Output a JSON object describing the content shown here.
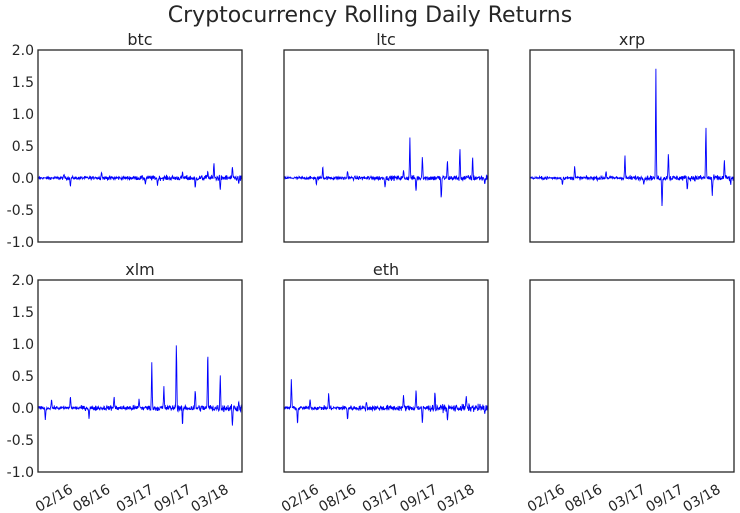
{
  "figure": {
    "title": "Cryptocurrency Rolling Daily Returns"
  },
  "chart_data": {
    "type": "line",
    "title": "Cryptocurrency Rolling Daily Returns",
    "ylim": [
      -1.0,
      2.0
    ],
    "yticks": [
      "2.0",
      "1.5",
      "1.0",
      "0.5",
      "0.0",
      "-0.5",
      "-1.0"
    ],
    "xticks": [
      "02/16",
      "08/16",
      "03/17",
      "09/17",
      "03/18"
    ],
    "grid": false,
    "line_color": "#0000ff",
    "panels": [
      {
        "name": "btc",
        "approx_band": [
          -0.12,
          0.12
        ],
        "series": [
          {
            "x": "2015-09",
            "y": 0.0
          },
          {
            "x": "2015-12",
            "y": 0.06
          },
          {
            "x": "2016-01",
            "y": -0.15
          },
          {
            "x": "2016-05",
            "y": 0.02
          },
          {
            "x": "2016-06",
            "y": 0.1
          },
          {
            "x": "2016-09",
            "y": 0.0
          },
          {
            "x": "2017-01",
            "y": -0.1
          },
          {
            "x": "2017-03",
            "y": -0.12
          },
          {
            "x": "2017-07",
            "y": 0.1
          },
          {
            "x": "2017-09",
            "y": -0.17
          },
          {
            "x": "2017-11",
            "y": 0.12
          },
          {
            "x": "2017-12",
            "y": 0.24
          },
          {
            "x": "2018-01",
            "y": -0.2
          },
          {
            "x": "2018-03",
            "y": 0.18
          },
          {
            "x": "2018-04",
            "y": -0.1
          }
        ]
      },
      {
        "name": "ltc",
        "approx_band": [
          -0.12,
          0.12
        ],
        "series": [
          {
            "x": "2015-09",
            "y": 0.0
          },
          {
            "x": "2016-01",
            "y": -0.12
          },
          {
            "x": "2016-02",
            "y": 0.2
          },
          {
            "x": "2016-06",
            "y": 0.12
          },
          {
            "x": "2016-12",
            "y": -0.15
          },
          {
            "x": "2017-03",
            "y": 0.12
          },
          {
            "x": "2017-04",
            "y": 0.65
          },
          {
            "x": "2017-05",
            "y": -0.22
          },
          {
            "x": "2017-06",
            "y": 0.35
          },
          {
            "x": "2017-09",
            "y": -0.35
          },
          {
            "x": "2017-10",
            "y": 0.3
          },
          {
            "x": "2017-12",
            "y": 0.47
          },
          {
            "x": "2018-02",
            "y": 0.35
          },
          {
            "x": "2018-04",
            "y": -0.1
          }
        ]
      },
      {
        "name": "xrp",
        "approx_band": [
          -0.12,
          0.12
        ],
        "series": [
          {
            "x": "2015-09",
            "y": 0.0
          },
          {
            "x": "2016-01",
            "y": -0.12
          },
          {
            "x": "2016-03",
            "y": 0.2
          },
          {
            "x": "2016-08",
            "y": 0.12
          },
          {
            "x": "2016-11",
            "y": 0.38
          },
          {
            "x": "2017-02",
            "y": -0.1
          },
          {
            "x": "2017-04",
            "y": 1.75
          },
          {
            "x": "2017-05",
            "y": -0.48
          },
          {
            "x": "2017-06",
            "y": 0.4
          },
          {
            "x": "2017-09",
            "y": -0.2
          },
          {
            "x": "2017-12",
            "y": 0.82
          },
          {
            "x": "2018-01",
            "y": -0.3
          },
          {
            "x": "2018-03",
            "y": 0.3
          },
          {
            "x": "2018-04",
            "y": -0.12
          }
        ]
      },
      {
        "name": "xlm",
        "approx_band": [
          -0.15,
          0.15
        ],
        "series": [
          {
            "x": "2015-09",
            "y": -0.2
          },
          {
            "x": "2015-10",
            "y": 0.15
          },
          {
            "x": "2016-01",
            "y": 0.2
          },
          {
            "x": "2016-04",
            "y": -0.18
          },
          {
            "x": "2016-08",
            "y": 0.2
          },
          {
            "x": "2016-12",
            "y": 0.15
          },
          {
            "x": "2017-02",
            "y": 0.72
          },
          {
            "x": "2017-04",
            "y": 0.35
          },
          {
            "x": "2017-06",
            "y": 1.05
          },
          {
            "x": "2017-07",
            "y": -0.3
          },
          {
            "x": "2017-09",
            "y": 0.3
          },
          {
            "x": "2017-11",
            "y": 0.95
          },
          {
            "x": "2018-01",
            "y": 0.55
          },
          {
            "x": "2018-03",
            "y": -0.3
          },
          {
            "x": "2018-04",
            "y": 0.1
          }
        ]
      },
      {
        "name": "eth",
        "approx_band": [
          -0.15,
          0.15
        ],
        "series": [
          {
            "x": "2015-09",
            "y": 0.48
          },
          {
            "x": "2015-10",
            "y": -0.28
          },
          {
            "x": "2015-12",
            "y": 0.15
          },
          {
            "x": "2016-03",
            "y": 0.25
          },
          {
            "x": "2016-06",
            "y": -0.2
          },
          {
            "x": "2016-09",
            "y": 0.1
          },
          {
            "x": "2017-03",
            "y": 0.2
          },
          {
            "x": "2017-05",
            "y": 0.3
          },
          {
            "x": "2017-06",
            "y": -0.25
          },
          {
            "x": "2017-08",
            "y": 0.28
          },
          {
            "x": "2017-10",
            "y": -0.22
          },
          {
            "x": "2018-01",
            "y": 0.2
          },
          {
            "x": "2018-04",
            "y": -0.1
          }
        ]
      },
      {
        "name": "",
        "series": []
      }
    ]
  }
}
